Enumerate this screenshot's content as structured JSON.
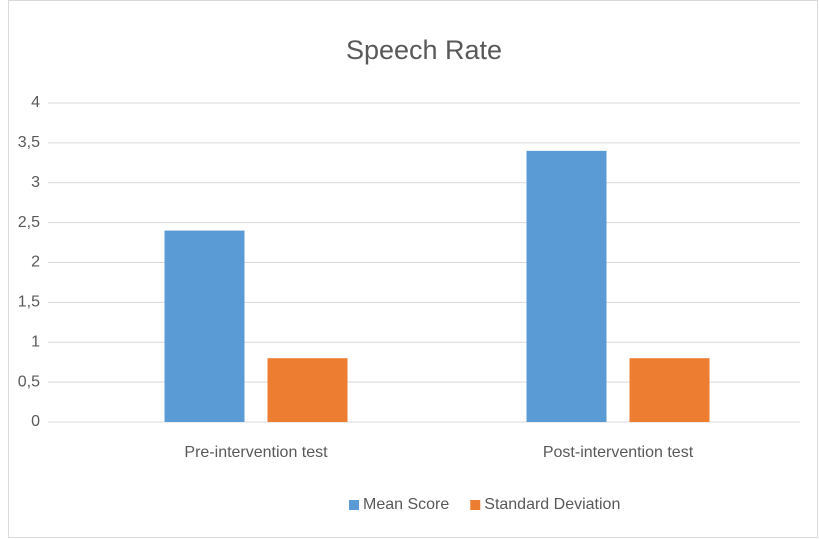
{
  "chart_data": {
    "type": "bar",
    "title": "Speech Rate",
    "categories": [
      "Pre-intervention test",
      "Post-intervention test"
    ],
    "series": [
      {
        "name": "Mean Score",
        "color": "#5b9bd5",
        "values": [
          2.4,
          3.4
        ]
      },
      {
        "name": "Standard Deviation",
        "color": "#ed7d31",
        "values": [
          0.8,
          0.8
        ]
      }
    ],
    "ylim": [
      0,
      4
    ],
    "yticks": [
      0,
      {
        "value": 0.5,
        "label": "0,5"
      },
      1,
      {
        "value": 1.5,
        "label": "1,5"
      },
      2,
      {
        "value": 2.5,
        "label": "2,5"
      },
      3,
      {
        "value": 3.5,
        "label": "3,5"
      },
      4
    ],
    "grid": true,
    "legend": "bottom"
  }
}
